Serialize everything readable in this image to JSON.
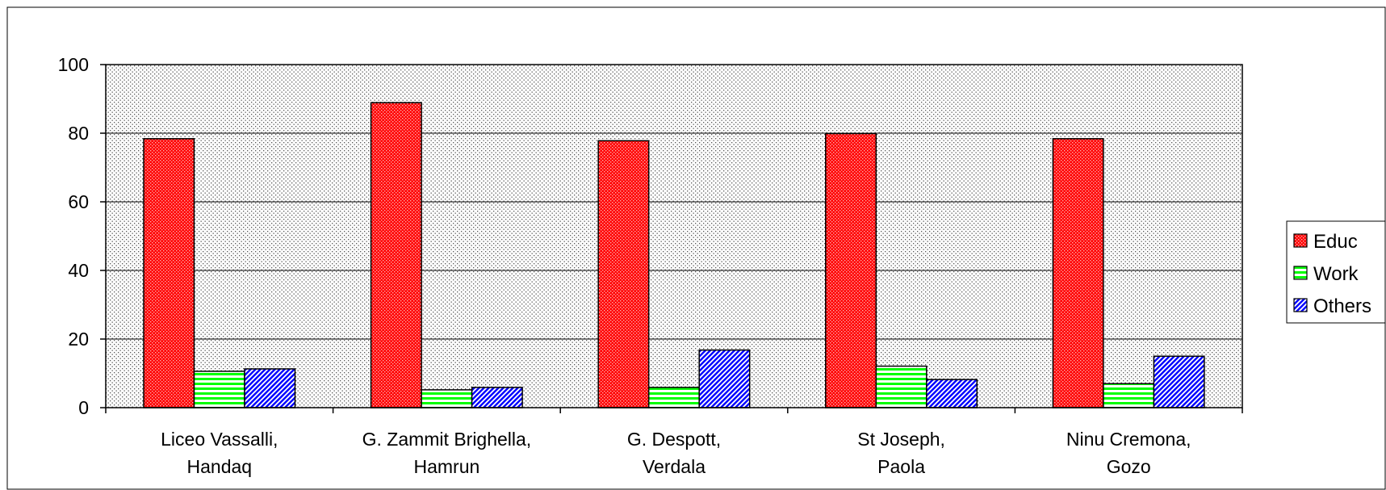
{
  "chart_data": {
    "type": "bar",
    "categories": [
      "Liceo Vassalli, Handaq",
      "G. Zammit Brighella, Hamrun",
      "G. Despott, Verdala",
      "St Joseph, Paola",
      "Ninu Cremona, Gozo"
    ],
    "series": [
      {
        "name": "Educ",
        "color": "#ff0000",
        "values": [
          78.4,
          88.9,
          77.8,
          79.9,
          78.4
        ]
      },
      {
        "name": "Work",
        "color": "#00ff00",
        "values": [
          10.6,
          5.2,
          5.9,
          12.1,
          7.0
        ]
      },
      {
        "name": "Others",
        "color": "#0000ff",
        "values": [
          11.3,
          5.9,
          16.8,
          8.2,
          15.0
        ]
      }
    ],
    "ylim": [
      0,
      100
    ],
    "yticks": [
      0,
      20,
      40,
      60,
      80,
      100
    ],
    "grid": true,
    "legend": "right"
  }
}
